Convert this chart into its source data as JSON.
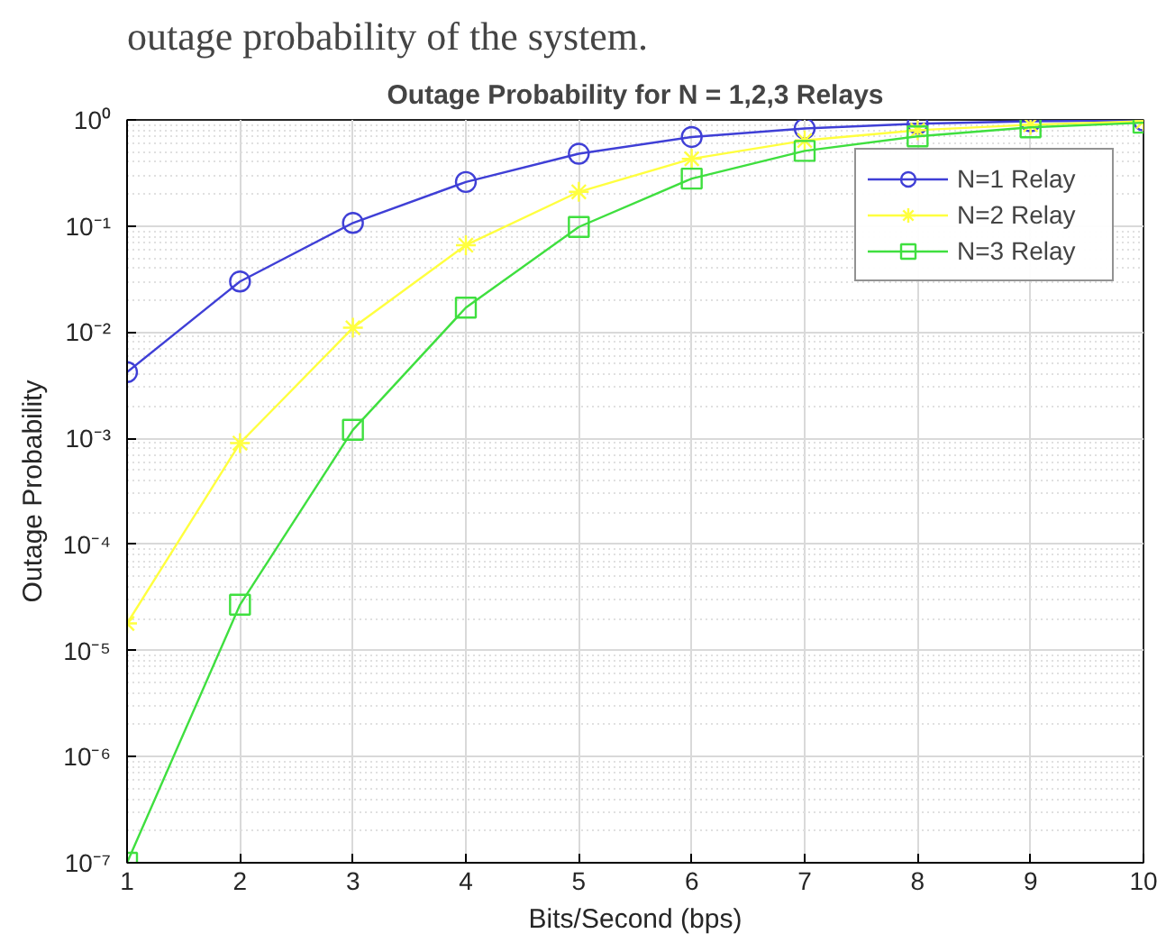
{
  "chart_data": {
    "type": "line",
    "title": "Outage Probability for N = 1,2,3 Relays",
    "xlabel": "Bits/Second (bps)",
    "ylabel": "Outage Probability",
    "annotations": [
      "outage probability of the system."
    ],
    "x": [
      1,
      2,
      3,
      4,
      5,
      6,
      7,
      8,
      9,
      10
    ],
    "series": [
      {
        "name": "N=1 Relay",
        "color": "#3f3fd6",
        "marker": "circle",
        "values": [
          0.0042,
          0.03,
          0.107,
          0.26,
          0.48,
          0.69,
          0.83,
          0.92,
          0.97,
          0.99
        ]
      },
      {
        "name": "N=2 Relay",
        "color": "#ffff3f",
        "marker": "cross",
        "values": [
          1.8e-05,
          0.0009,
          0.011,
          0.066,
          0.21,
          0.43,
          0.64,
          0.8,
          0.9,
          0.97
        ]
      },
      {
        "name": "N=3 Relay",
        "color": "#3fdf3f",
        "marker": "square",
        "values": [
          1e-07,
          2.7e-05,
          0.0012,
          0.017,
          0.098,
          0.28,
          0.51,
          0.7,
          0.85,
          0.94
        ]
      }
    ],
    "log": "y",
    "xlim": [
      1,
      10
    ],
    "ylim": [
      1e-07,
      1
    ],
    "xticks": [
      1,
      2,
      3,
      4,
      5,
      6,
      7,
      8,
      9,
      10
    ],
    "yticks": [
      {
        "value": 1e-07,
        "label": "10⁻⁷"
      },
      {
        "value": 1e-06,
        "label": "10⁻⁶"
      },
      {
        "value": 1e-05,
        "label": "10⁻⁵"
      },
      {
        "value": 0.0001,
        "label": "10⁻⁴"
      },
      {
        "value": 0.001,
        "label": "10⁻³"
      },
      {
        "value": 0.01,
        "label": "10⁻²"
      },
      {
        "value": 0.1,
        "label": "10⁻¹"
      },
      {
        "value": 1,
        "label": "10⁰"
      }
    ],
    "grid": true,
    "legend": "top right",
    "line_style": "solid"
  }
}
